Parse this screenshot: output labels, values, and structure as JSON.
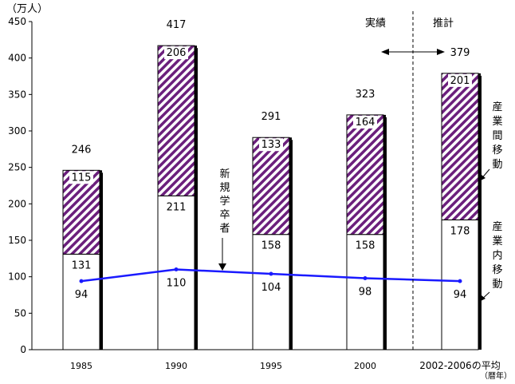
{
  "chart_data": {
    "type": "bar",
    "y_unit": "（万人）",
    "x_unit": "（暦年）",
    "ylim": [
      0,
      450
    ],
    "y_ticks": [
      0,
      50,
      100,
      150,
      200,
      250,
      300,
      350,
      400,
      450
    ],
    "categories": [
      "1985",
      "1990",
      "1995",
      "2000",
      "2002-2006の平均"
    ],
    "series": [
      {
        "name": "産業内移動",
        "values": [
          131,
          211,
          158,
          158,
          178
        ]
      },
      {
        "name": "産業間移動",
        "values": [
          115,
          206,
          133,
          164,
          201
        ]
      }
    ],
    "totals": [
      246,
      417,
      291,
      323,
      379
    ],
    "line_series": {
      "name": "新規学卒者",
      "values": [
        94,
        110,
        104,
        98,
        94
      ]
    },
    "annotations": {
      "actual": "実績",
      "estimate": "推計"
    },
    "colors": {
      "inter_industry": "#6b1f7c",
      "line": "#1a1aff"
    }
  }
}
